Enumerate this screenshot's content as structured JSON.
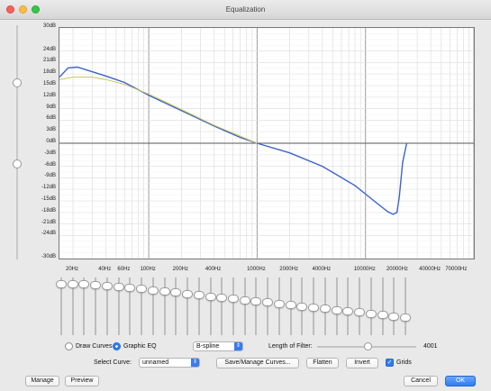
{
  "window": {
    "title": "Equalization"
  },
  "y_axis": {
    "labels": [
      "30dB",
      "24dB",
      "21dB",
      "18dB",
      "15dB",
      "12dB",
      "9dB",
      "6dB",
      "3dB",
      "0dB",
      "-3dB",
      "-6dB",
      "-9dB",
      "-12dB",
      "-15dB",
      "-18dB",
      "-21dB",
      "-24dB",
      "-30dB"
    ],
    "values": [
      30,
      24,
      21,
      18,
      15,
      12,
      9,
      6,
      3,
      0,
      -3,
      -6,
      -9,
      -12,
      -15,
      -18,
      -21,
      -24,
      -30
    ]
  },
  "x_axis": {
    "labels": [
      "20Hz",
      "40Hz",
      "60Hz",
      "100Hz",
      "200Hz",
      "400Hz",
      "1000Hz",
      "2000Hz",
      "4000Hz",
      "10000Hz",
      "20000Hz",
      "40000Hz",
      "70000Hz"
    ],
    "values": [
      20,
      40,
      60,
      100,
      200,
      400,
      1000,
      2000,
      4000,
      10000,
      20000,
      40000,
      70000
    ]
  },
  "chart_data": {
    "type": "line",
    "x_scale": "log",
    "x_range_hz": [
      15,
      100000
    ],
    "y_range_db": [
      -30,
      30
    ],
    "grid": true,
    "series": [
      {
        "color": "#3c63c9",
        "points": [
          [
            15,
            17.2
          ],
          [
            18,
            19.6
          ],
          [
            22,
            19.8
          ],
          [
            30,
            18.6
          ],
          [
            40,
            17.5
          ],
          [
            60,
            15.8
          ],
          [
            100,
            12.5
          ],
          [
            200,
            8.5
          ],
          [
            400,
            4.5
          ],
          [
            700,
            1.5
          ],
          [
            1000,
            0
          ],
          [
            2000,
            -2.5
          ],
          [
            4000,
            -6
          ],
          [
            8000,
            -11
          ],
          [
            12000,
            -15
          ],
          [
            16000,
            -17.8
          ],
          [
            18000,
            -18.5
          ],
          [
            19500,
            -18
          ],
          [
            20500,
            -14
          ],
          [
            22000,
            -5
          ],
          [
            24000,
            0
          ]
        ]
      },
      {
        "color": "#c8c85a",
        "points": [
          [
            15,
            16.6
          ],
          [
            20,
            17.2
          ],
          [
            30,
            17.2
          ],
          [
            40,
            16.6
          ],
          [
            60,
            15.3
          ],
          [
            100,
            12.8
          ],
          [
            200,
            8.8
          ],
          [
            400,
            4.7
          ],
          [
            1000,
            0
          ]
        ]
      }
    ]
  },
  "band_sliders": {
    "count": 31,
    "levels_db": [
      18,
      18,
      17.5,
      17,
      16.5,
      16,
      15,
      14,
      13,
      12,
      11,
      10,
      9,
      8,
      7,
      6,
      5,
      4,
      3,
      2,
      1,
      0,
      -1,
      -2,
      -3,
      -4,
      -5,
      -6,
      -7,
      -8,
      -9
    ]
  },
  "left_slider": {
    "thumb_levels_db": [
      15,
      -6
    ]
  },
  "controls": {
    "draw_curves": "Draw Curves",
    "graphic_eq": "Graphic EQ",
    "interpolation": "B-spline",
    "length_label": "Length of Filter:",
    "length_value": "4001",
    "select_curve_label": "Select Curve:",
    "curve_name": "unnamed",
    "save_manage": "Save/Manage Curves...",
    "flatten": "Flatten",
    "invert": "Invert",
    "grids": "Grids",
    "manage": "Manage",
    "preview": "Preview",
    "cancel": "Cancel",
    "ok": "OK"
  }
}
